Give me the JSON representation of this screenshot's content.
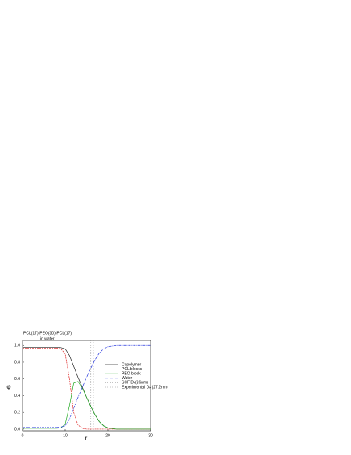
{
  "chart_data": {
    "type": "line",
    "title": "PCL(17)-PEO(30)-PCL(17)",
    "subtitle": "in water",
    "xlabel": "r",
    "ylabel": "φ",
    "x": [
      0,
      2,
      4,
      6,
      8,
      9,
      10,
      11,
      12,
      13,
      14,
      15,
      16,
      17,
      18,
      19,
      20,
      22,
      24,
      26,
      28,
      30
    ],
    "series": [
      {
        "name": "Copolymer",
        "color": "#222222",
        "dash": "",
        "values": [
          0.98,
          0.98,
          0.98,
          0.98,
          0.98,
          0.975,
          0.96,
          0.88,
          0.75,
          0.62,
          0.5,
          0.38,
          0.27,
          0.17,
          0.09,
          0.04,
          0.015,
          0,
          0,
          0,
          0,
          0
        ]
      },
      {
        "name": "PCL blocks",
        "color": "#dd2222",
        "dash": "2,1",
        "values": [
          0.97,
          0.97,
          0.97,
          0.97,
          0.97,
          0.96,
          0.9,
          0.6,
          0.2,
          0.05,
          0.01,
          0,
          0,
          0,
          0,
          0,
          0,
          0,
          0,
          0,
          0,
          0
        ]
      },
      {
        "name": "PEO block",
        "color": "#22aa22",
        "dash": "",
        "values": [
          0.01,
          0.01,
          0.01,
          0.01,
          0.01,
          0.015,
          0.06,
          0.28,
          0.55,
          0.57,
          0.49,
          0.38,
          0.27,
          0.17,
          0.09,
          0.04,
          0.015,
          0,
          0,
          0,
          0,
          0
        ]
      },
      {
        "name": "Water",
        "color": "#2233dd",
        "dash": "3,1,1,1",
        "values": [
          0.02,
          0.02,
          0.02,
          0.02,
          0.02,
          0.025,
          0.04,
          0.12,
          0.25,
          0.38,
          0.5,
          0.62,
          0.73,
          0.83,
          0.91,
          0.96,
          0.985,
          1,
          1,
          1,
          1,
          1
        ]
      }
    ],
    "vlines": [
      {
        "name": "SCF Dₕ(26nm)",
        "x": 16,
        "color": "#888888"
      },
      {
        "name": "Experimental Dₕ (27.2nm)",
        "x": 16.6,
        "color": "#888888"
      }
    ],
    "xlim": [
      0,
      30
    ],
    "ylim": [
      -0.02,
      1.06
    ],
    "xticks": [
      0,
      10,
      20,
      30
    ],
    "yticks": [
      {
        "value": 0,
        "label": "0.0"
      },
      0.2,
      0.4,
      0.6,
      0.8,
      {
        "value": 1,
        "label": "1.0"
      }
    ]
  }
}
